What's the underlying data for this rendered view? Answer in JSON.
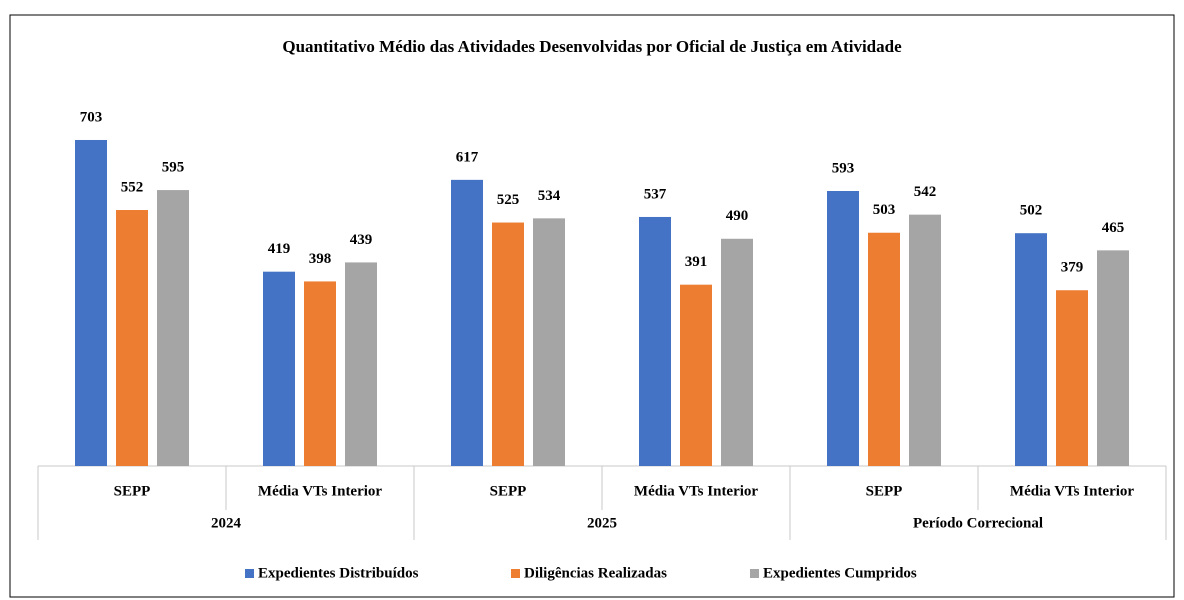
{
  "chart_data": {
    "type": "bar",
    "title": "Quantitativo Médio das Atividades Desenvolvidas por Oficial de Justiça em Atividade",
    "categories": [
      "SEPP",
      "Média VTs Interior",
      "SEPP",
      "Média VTs Interior",
      "SEPP",
      "Média VTs Interior"
    ],
    "groups": [
      "2024",
      "2025",
      "Período Correcional"
    ],
    "series": [
      {
        "name": "Expedientes Distribuídos",
        "color": "#4472c4",
        "values": [
          703,
          419,
          617,
          537,
          593,
          502
        ]
      },
      {
        "name": "Diligências Realizadas",
        "color": "#ed7d31",
        "values": [
          552,
          398,
          525,
          391,
          503,
          379
        ]
      },
      {
        "name": "Expedientes Cumpridos",
        "color": "#a5a5a5",
        "values": [
          595,
          439,
          534,
          490,
          542,
          465
        ]
      }
    ],
    "ylim": [
      0,
      800
    ],
    "legend": "bottom"
  }
}
